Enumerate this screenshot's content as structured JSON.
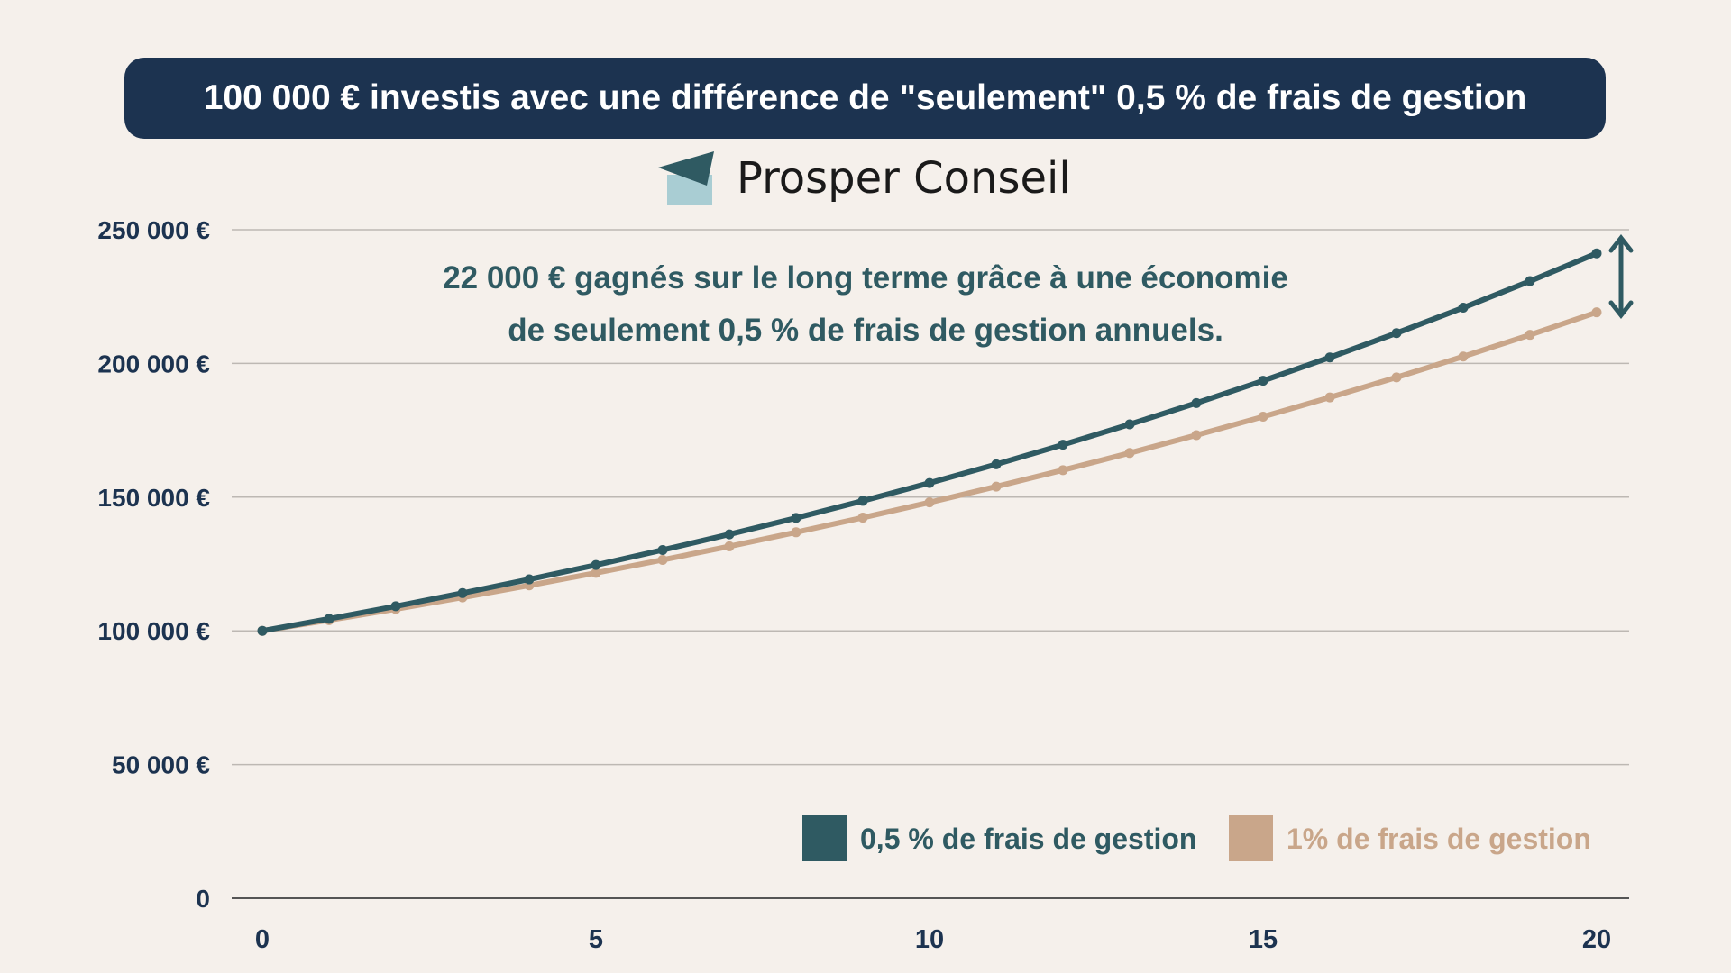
{
  "header": {
    "title": "100 000 € investis avec une différence de \"seulement\" 0,5 % de frais de gestion"
  },
  "brand": {
    "name": "Prosper Conseil",
    "logo": "paper-plane-logo"
  },
  "chart_data": {
    "type": "line",
    "title": "100 000 € investis avec une différence de \"seulement\" 0,5 % de frais de gestion",
    "annotation": [
      "22 000 € gagnés sur le long terme grâce à une économie",
      "de seulement 0,5 % de frais de gestion annuels."
    ],
    "x": [
      0,
      1,
      2,
      3,
      4,
      5,
      6,
      7,
      8,
      9,
      10,
      11,
      12,
      13,
      14,
      15,
      16,
      17,
      18,
      19,
      20
    ],
    "xticks": [
      0,
      5,
      10,
      15,
      20
    ],
    "xtick_labels": [
      "0",
      "5",
      "10",
      "15",
      "20"
    ],
    "yticks": [
      0,
      50000,
      100000,
      150000,
      200000,
      250000
    ],
    "ytick_labels": [
      "0",
      "50 000 €",
      "100 000 €",
      "150 000 €",
      "200 000 €",
      "250 000 €"
    ],
    "xlim": [
      0,
      20
    ],
    "ylim": [
      0,
      250000
    ],
    "grid": "horizontal",
    "legend": "bottom-right",
    "series": [
      {
        "name": "0,5 % de frais de gestion",
        "color": "#2f5a62",
        "values": [
          100000,
          104500,
          109203,
          114117,
          119252,
          124618,
          130226,
          136086,
          142210,
          148610,
          155297,
          162285,
          169588,
          177220,
          185194,
          193528,
          202237,
          211338,
          220848,
          230786,
          241171
        ]
      },
      {
        "name": "1% de frais de gestion",
        "color": "#c9a68a",
        "values": [
          100000,
          104000,
          108160,
          112486,
          116986,
          121665,
          126532,
          131593,
          136857,
          142331,
          148024,
          153945,
          160103,
          166507,
          173168,
          180094,
          187298,
          194790,
          202582,
          210685,
          219112
        ]
      }
    ]
  }
}
